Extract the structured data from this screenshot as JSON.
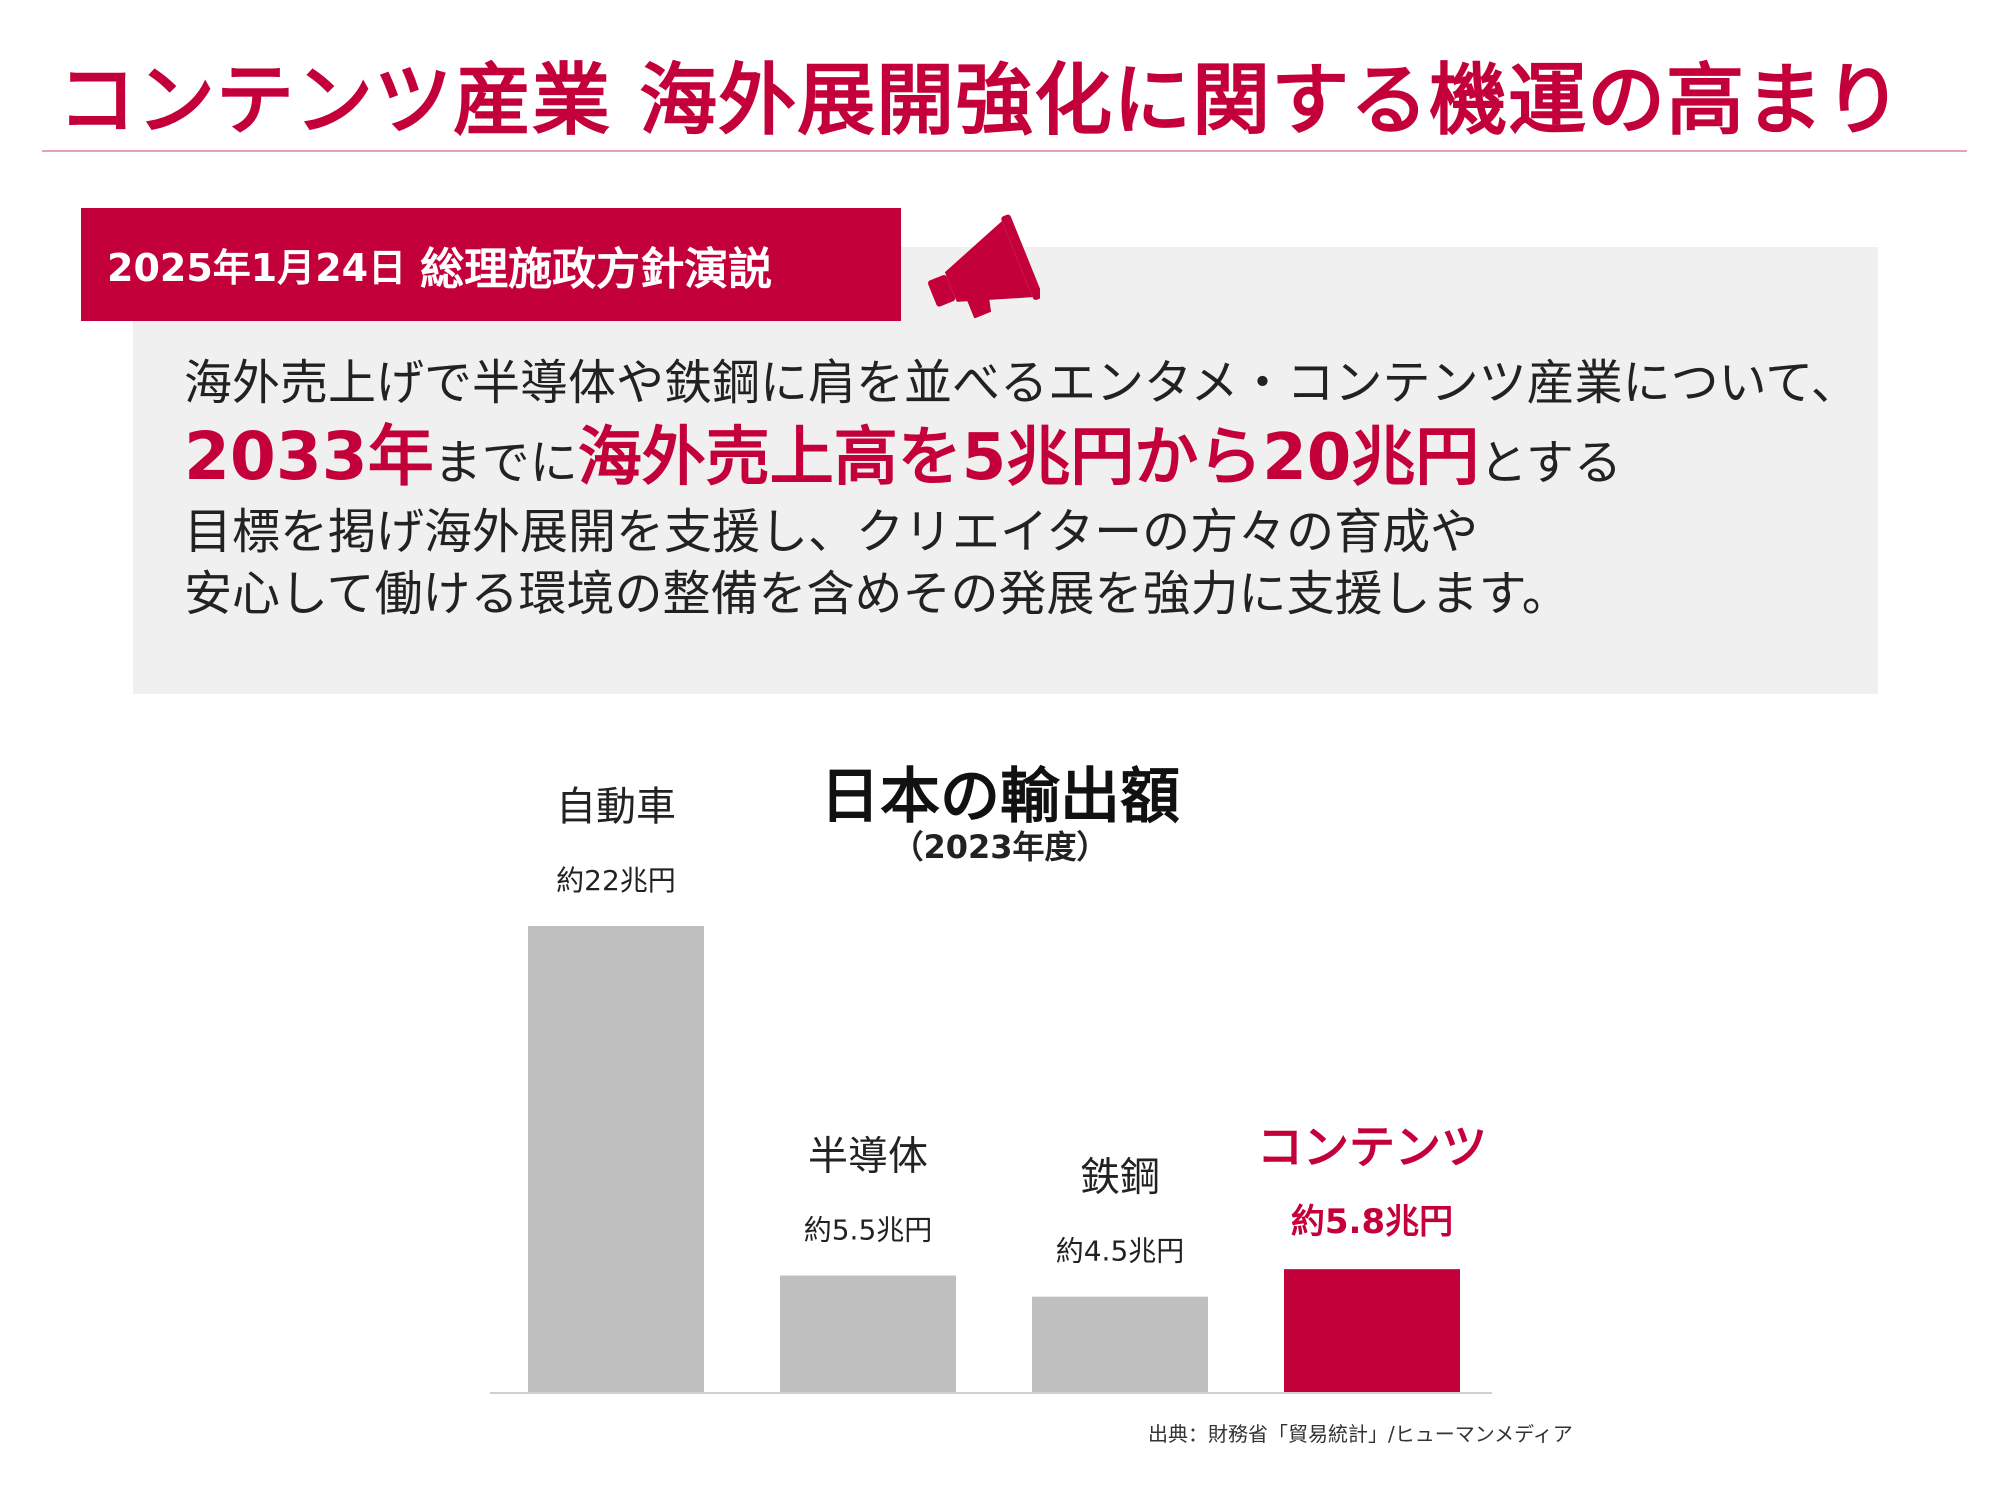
{
  "header": {
    "title": "コンテンツ産業 海外展開強化に関する機運の高まり"
  },
  "speech": {
    "date": "2025年1月24日",
    "event": "総理施政方針演説",
    "line1": "海外売上げで半導体や鉄鋼に肩を並べるエンタメ・コンテンツ産業について、",
    "line2_hl1": "2033年",
    "line2_mid": "までに",
    "line2_hl2": "海外売上高を5兆円から20兆円",
    "line2_end": "とする",
    "line3": "目標を掲げ海外展開を支援し、クリエイターの方々の育成や",
    "line4": "安心して働ける環境の整備を含めその発展を強力に支援します。"
  },
  "colors": {
    "accent": "#c4003a",
    "bar_default": "#bfbfbf",
    "panel_bg": "#f0f0f0"
  },
  "icons": {
    "megaphone": "megaphone-icon"
  },
  "chart_data": {
    "type": "bar",
    "title": "日本の輸出額",
    "subtitle": "（2023年度）",
    "unit": "兆円",
    "categories": [
      "自動車",
      "半導体",
      "鉄鋼",
      "コンテンツ"
    ],
    "values": [
      22,
      5.5,
      4.5,
      5.8
    ],
    "value_labels": [
      "約22兆円",
      "約5.5兆円",
      "約4.5兆円",
      "約5.8兆円"
    ],
    "highlight": [
      false,
      false,
      false,
      true
    ],
    "ylim": [
      0,
      22
    ]
  },
  "footer": {
    "source": "出典：財務省「貿易統計」/ヒューマンメディア"
  }
}
